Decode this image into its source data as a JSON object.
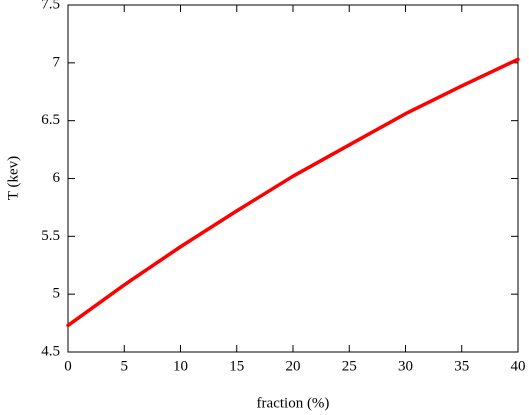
{
  "chart_data": {
    "type": "line",
    "x_label": "fraction (%)",
    "y_label": "T (kev)",
    "x": [
      0,
      5,
      10,
      15,
      20,
      25,
      30,
      35,
      40
    ],
    "values": [
      4.73,
      5.08,
      5.41,
      5.72,
      6.02,
      6.29,
      6.56,
      6.8,
      7.03
    ],
    "color": "#ff0000",
    "xlim": [
      0,
      40
    ],
    "xticks": [
      0,
      5,
      10,
      15,
      20,
      25,
      30,
      35,
      40
    ],
    "ylim": [
      4.5,
      7.5
    ],
    "yticks": [
      4.5,
      5,
      5.5,
      6,
      6.5,
      7,
      7.5
    ]
  }
}
